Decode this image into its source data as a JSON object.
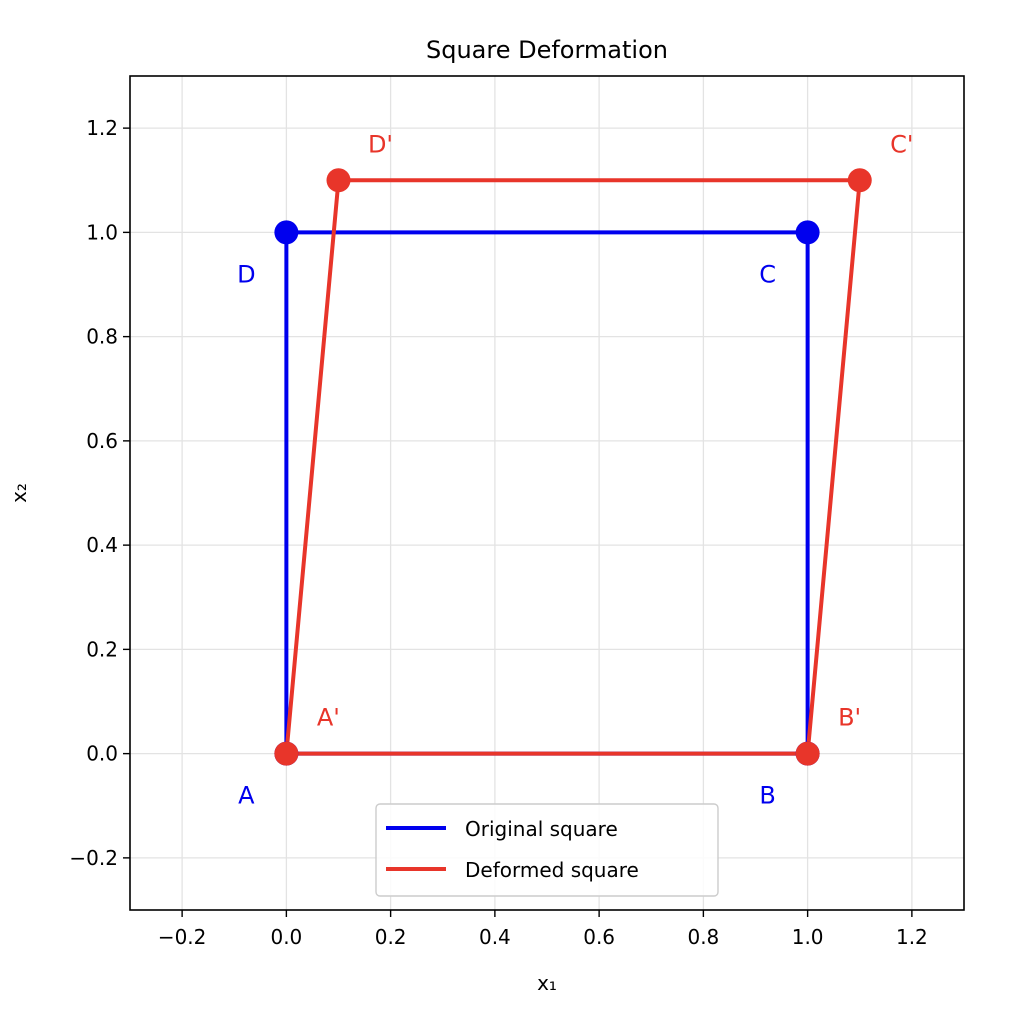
{
  "chart_data": {
    "type": "line",
    "title": "Square Deformation",
    "xlabel": "x₁",
    "ylabel": "x₂",
    "xlim": [
      -0.3,
      1.3
    ],
    "ylim": [
      -0.3,
      1.3
    ],
    "xticks": [
      -0.2,
      0.0,
      0.2,
      0.4,
      0.6,
      0.8,
      1.0,
      1.2
    ],
    "yticks": [
      -0.2,
      0.0,
      0.2,
      0.4,
      0.6,
      0.8,
      1.0,
      1.2
    ],
    "xtick_labels": [
      "−0.2",
      "0.0",
      "0.2",
      "0.4",
      "0.6",
      "0.8",
      "1.0",
      "1.2"
    ],
    "ytick_labels": [
      "−0.2",
      "0.0",
      "0.2",
      "0.4",
      "0.6",
      "0.8",
      "1.0",
      "1.2"
    ],
    "grid": true,
    "legend_position": "bottom-center",
    "series": [
      {
        "name": "Original square",
        "color": "#0000ee",
        "points": [
          {
            "label": "A",
            "x": 0.0,
            "y": 0.0
          },
          {
            "label": "B",
            "x": 1.0,
            "y": 0.0
          },
          {
            "label": "C",
            "x": 1.0,
            "y": 1.0
          },
          {
            "label": "D",
            "x": 0.0,
            "y": 1.0
          }
        ]
      },
      {
        "name": "Deformed square",
        "color": "#e8352a",
        "points": [
          {
            "label": "A'",
            "x": 0.0,
            "y": 0.0
          },
          {
            "label": "B'",
            "x": 1.0,
            "y": 0.0
          },
          {
            "label": "C'",
            "x": 1.1,
            "y": 1.1
          },
          {
            "label": "D'",
            "x": 0.1,
            "y": 1.1
          }
        ]
      }
    ]
  }
}
